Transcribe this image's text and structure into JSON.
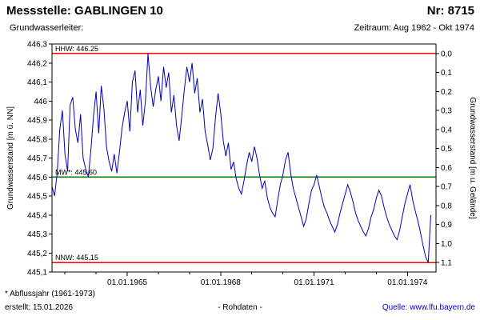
{
  "header": {
    "title": "Messstelle: GABLINGEN 10",
    "number": "Nr: 8715",
    "subtitle_left": "Grundwasserleiter:",
    "subtitle_right": "Zeitraum: Aug 1962 - Okt 1974"
  },
  "footer": {
    "note": "* Abflussjahr (1961-1973)",
    "created": "erstellt: 15.01.2026",
    "center": "- Rohdaten -",
    "source_label": "Quelle:",
    "source_link": "www.lfu.bayern.de"
  },
  "colors": {
    "series": "#0000bb",
    "hhw": "#ff0000",
    "nnw": "#ff0000",
    "mw": "#008000",
    "axis": "#000000",
    "link": "#0000cc"
  },
  "chart_data": {
    "type": "line",
    "title": "",
    "ylabel_left": "Grundwasserstand [m ü. NN]",
    "ylabel_right": "Grundwasserstand [m u. Gelände]",
    "ylim_left": [
      445.1,
      446.3
    ],
    "ylim_right": [
      1.1,
      0.0
    ],
    "ground_elevation": 446.25,
    "grid": false,
    "legend": false,
    "x_start": "Aug 1962",
    "x_end": "Okt 1974",
    "left_tick_values": [
      446.3,
      446.2,
      446.1,
      446.0,
      445.9,
      445.8,
      445.7,
      445.6,
      445.5,
      445.4,
      445.3,
      445.2,
      445.1
    ],
    "left_tick_labels": [
      "446,3",
      "446,2",
      "446,1",
      "446",
      "445,9",
      "445,8",
      "445,7",
      "445,6",
      "445,5",
      "445,4",
      "445,3",
      "445,2",
      "445,1"
    ],
    "right_tick_values": [
      0.0,
      0.1,
      0.2,
      0.3,
      0.4,
      0.5,
      0.6,
      0.7,
      0.8,
      0.9,
      1.0,
      1.1
    ],
    "right_tick_labels": [
      "0,0",
      "0,1",
      "0,2",
      "0,3",
      "0,4",
      "0,5",
      "0,6",
      "0,7",
      "0,8",
      "0,9",
      "1,0",
      "1,1"
    ],
    "x_tick_labels": [
      "01.01.1965",
      "01.01.1968",
      "01.01.1971",
      "01.01.1974"
    ],
    "x_tick_month_index": [
      29,
      65,
      101,
      137
    ],
    "x_minor_tick_month_index": [
      5,
      17,
      29,
      41,
      53,
      65,
      77,
      89,
      101,
      113,
      125,
      137
    ],
    "x_domain_months": 148,
    "reference_lines": [
      {
        "name": "HHW",
        "label": "HHW: 446.25",
        "value": 446.25,
        "color": "#ff0000"
      },
      {
        "name": "MW",
        "label": "MW*: 445.60",
        "value": 445.6,
        "color": "#008000"
      },
      {
        "name": "NNW",
        "label": "NNW: 445.15",
        "value": 445.15,
        "color": "#ff0000"
      }
    ],
    "series": [
      {
        "name": "Grundwasserstand Rohdaten",
        "color": "#0000bb",
        "start_month": "1962-08",
        "interval": "monthly",
        "values": [
          445.55,
          445.5,
          445.62,
          445.85,
          445.95,
          445.72,
          445.63,
          445.98,
          446.02,
          445.85,
          445.78,
          445.93,
          445.7,
          445.64,
          445.6,
          445.74,
          445.92,
          446.05,
          445.83,
          446.08,
          445.96,
          445.76,
          445.68,
          445.63,
          445.72,
          445.62,
          445.73,
          445.86,
          445.94,
          446.0,
          445.84,
          446.1,
          446.16,
          445.94,
          446.06,
          445.87,
          446.0,
          446.25,
          446.08,
          445.97,
          446.06,
          446.13,
          446.0,
          446.18,
          446.07,
          446.15,
          445.94,
          446.03,
          445.87,
          445.79,
          445.92,
          446.06,
          446.18,
          446.1,
          446.2,
          446.04,
          446.12,
          445.94,
          446.01,
          445.84,
          445.77,
          445.69,
          445.75,
          445.91,
          446.04,
          445.94,
          445.79,
          445.71,
          445.78,
          445.64,
          445.68,
          445.59,
          445.54,
          445.51,
          445.58,
          445.66,
          445.73,
          445.68,
          445.76,
          445.7,
          445.61,
          445.54,
          445.58,
          445.49,
          445.44,
          445.41,
          445.39,
          445.48,
          445.56,
          445.61,
          445.69,
          445.73,
          445.62,
          445.54,
          445.49,
          445.44,
          445.39,
          445.34,
          445.38,
          445.46,
          445.53,
          445.56,
          445.61,
          445.55,
          445.49,
          445.44,
          445.41,
          445.37,
          445.34,
          445.31,
          445.35,
          445.41,
          445.46,
          445.51,
          445.56,
          445.52,
          445.47,
          445.41,
          445.37,
          445.34,
          445.31,
          445.29,
          445.33,
          445.39,
          445.43,
          445.49,
          445.53,
          445.5,
          445.44,
          445.39,
          445.35,
          445.32,
          445.29,
          445.27,
          445.32,
          445.39,
          445.46,
          445.51,
          445.56,
          445.48,
          445.42,
          445.37,
          445.31,
          445.24,
          445.18,
          445.15,
          445.4
        ]
      }
    ]
  }
}
